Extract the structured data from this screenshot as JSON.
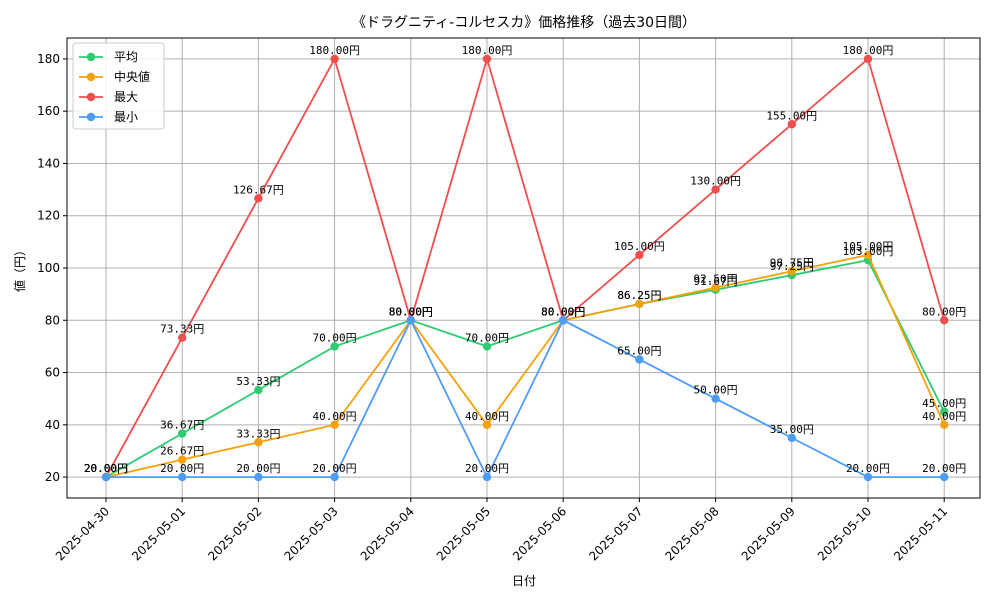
{
  "chart_data": {
    "type": "line",
    "title": "《ドラグニティ-コルセスカ》価格推移（過去30日間）",
    "xlabel": "日付",
    "ylabel": "値（円）",
    "ylim": [
      12,
      188
    ],
    "yticks": [
      20,
      40,
      60,
      80,
      100,
      120,
      140,
      160,
      180
    ],
    "grid": true,
    "legend_position": "top-left",
    "label_suffix": "円",
    "categories": [
      "2025-04-30",
      "2025-05-01",
      "2025-05-02",
      "2025-05-03",
      "2025-05-04",
      "2025-05-05",
      "2025-05-06",
      "2025-05-07",
      "2025-05-08",
      "2025-05-09",
      "2025-05-10",
      "2025-05-11"
    ],
    "series": [
      {
        "name": "平均",
        "color": "#2ecc71",
        "values": [
          20.0,
          36.67,
          53.33,
          70.0,
          80.0,
          70.0,
          80.0,
          86.25,
          91.67,
          97.25,
          103.0,
          45.0
        ]
      },
      {
        "name": "中央値",
        "color": "#f5a10b",
        "values": [
          20.0,
          26.67,
          33.33,
          40.0,
          80.0,
          40.0,
          80.0,
          86.25,
          92.5,
          98.75,
          105.0,
          40.0
        ]
      },
      {
        "name": "最大",
        "color": "#f04e4e",
        "values": [
          20.0,
          73.33,
          126.67,
          180.0,
          80.0,
          180.0,
          80.0,
          105.0,
          130.0,
          155.0,
          180.0,
          80.0
        ]
      },
      {
        "name": "最小",
        "color": "#4d9cf5",
        "values": [
          20.0,
          20.0,
          20.0,
          20.0,
          80.0,
          20.0,
          80.0,
          65.0,
          50.0,
          35.0,
          20.0,
          20.0
        ]
      }
    ]
  }
}
